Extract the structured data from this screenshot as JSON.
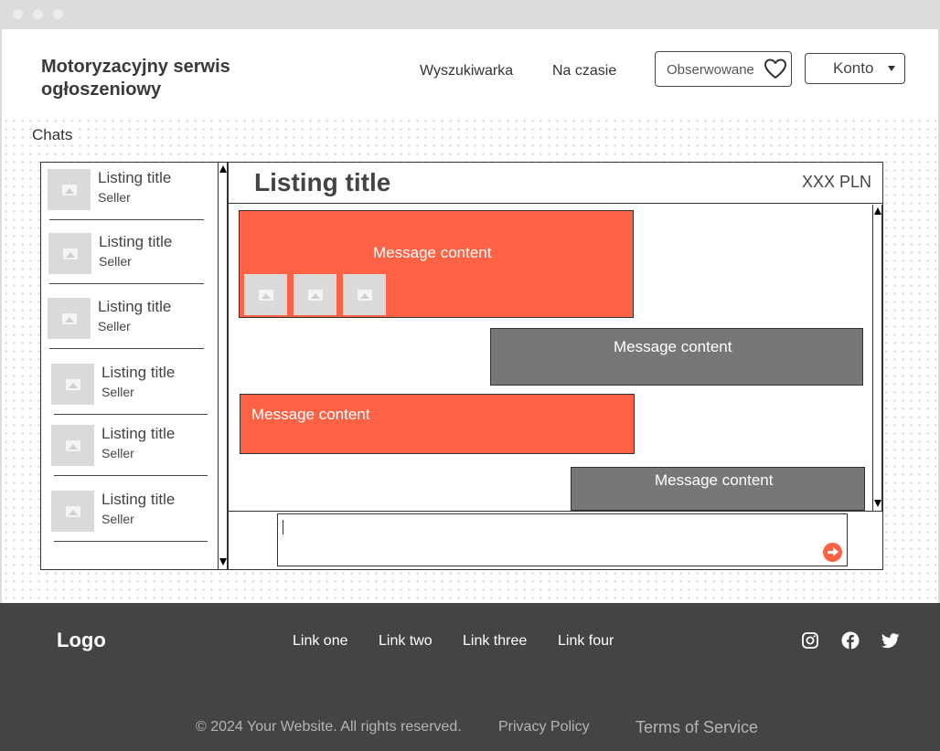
{
  "header": {
    "site_title": "Motoryzacyjny serwis ogłoszeniowy",
    "nav": [
      "Wyszukiwarka",
      "Na czasie"
    ],
    "watchlist_label": "Obserwowane",
    "account_label": "Konto"
  },
  "chats": {
    "section_label": "Chats",
    "list": [
      {
        "title": "Listing title",
        "seller": "Seller"
      },
      {
        "title": "Listing title",
        "seller": "Seller"
      },
      {
        "title": "Listing title",
        "seller": "Seller"
      },
      {
        "title": "Listing title",
        "seller": "Seller"
      },
      {
        "title": "Listing title",
        "seller": "Seller"
      },
      {
        "title": "Listing title",
        "seller": "Seller"
      }
    ]
  },
  "conversation": {
    "title": "Listing title",
    "price": "XXX PLN",
    "messages": [
      {
        "text": "Message content",
        "from": "me",
        "attachments": 3
      },
      {
        "text": "Message content",
        "from": "other",
        "attachments": 0
      },
      {
        "text": "Message content",
        "from": "me",
        "attachments": 0
      },
      {
        "text": "Message content",
        "from": "other",
        "attachments": 0
      }
    ],
    "compose_value": ""
  },
  "footer": {
    "logo": "Logo",
    "links": [
      "Link one",
      "Link two",
      "Link three",
      "Link four"
    ],
    "social_icons": [
      "instagram-icon",
      "facebook-icon",
      "twitter-icon"
    ],
    "copyright": "© 2024 Your Website. All rights reserved.",
    "privacy": "Privacy Policy",
    "terms": "Terms of Service"
  },
  "colors": {
    "accent": "#fe6245",
    "incoming": "#777777",
    "footer_bg": "#444444"
  }
}
